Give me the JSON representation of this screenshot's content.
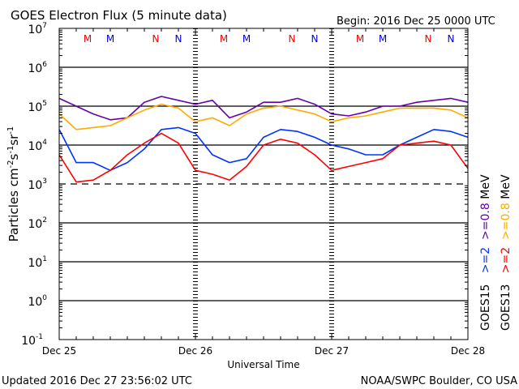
{
  "chart_data": {
    "type": "line",
    "title": "GOES Electron Flux (5 minute data)",
    "begin_label": "Begin: 2016 Dec 25 0000 UTC",
    "xlabel": "Universal Time",
    "ylabel": "Particles cm-2s-1sr-1",
    "y_scale": "log",
    "ylim_log10": [
      -1,
      7
    ],
    "y_tick_labels": [
      {
        "base": "10",
        "exp": "7",
        "v": 7
      },
      {
        "base": "10",
        "exp": "6",
        "v": 6
      },
      {
        "base": "10",
        "exp": "5",
        "v": 5
      },
      {
        "base": "10",
        "exp": "4",
        "v": 4
      },
      {
        "base": "10",
        "exp": "3",
        "v": 3
      },
      {
        "base": "10",
        "exp": "2",
        "v": 2
      },
      {
        "base": "10",
        "exp": "1",
        "v": 1
      },
      {
        "base": "10",
        "exp": "0",
        "v": 0
      },
      {
        "base": "10",
        "exp": "-1",
        "v": -1
      }
    ],
    "x_hours_range": [
      0,
      72
    ],
    "x_tick_labels": [
      {
        "label": "Dec 25",
        "h": 0
      },
      {
        "label": "Dec 26",
        "h": 24
      },
      {
        "label": "Dec 27",
        "h": 48
      },
      {
        "label": "Dec 28",
        "h": 72
      }
    ],
    "gridlines_log10": [
      6,
      5,
      4,
      2,
      1,
      0
    ],
    "dashed_threshold_log10": 3,
    "markers": [
      {
        "label": "M",
        "color": "#ff0000",
        "h": 5
      },
      {
        "label": "M",
        "color": "#0000ff",
        "h": 9
      },
      {
        "label": "N",
        "color": "#ff0000",
        "h": 17
      },
      {
        "label": "N",
        "color": "#0000ff",
        "h": 21
      },
      {
        "label": "M",
        "color": "#ff0000",
        "h": 29
      },
      {
        "label": "M",
        "color": "#0000ff",
        "h": 33
      },
      {
        "label": "N",
        "color": "#ff0000",
        "h": 41
      },
      {
        "label": "N",
        "color": "#0000ff",
        "h": 45
      },
      {
        "label": "M",
        "color": "#ff0000",
        "h": 53
      },
      {
        "label": "M",
        "color": "#0000ff",
        "h": 57
      },
      {
        "label": "N",
        "color": "#ff0000",
        "h": 65
      },
      {
        "label": "N",
        "color": "#0000ff",
        "h": 69
      }
    ],
    "x_hours": [
      0,
      3,
      6,
      9,
      12,
      15,
      18,
      21,
      24,
      27,
      30,
      33,
      36,
      39,
      42,
      45,
      48,
      51,
      54,
      57,
      60,
      63,
      66,
      69,
      72
    ],
    "series": [
      {
        "name": "GOES15 >=0.8 MeV",
        "color": "#6600aa",
        "log10_values": [
          5.2,
          5.0,
          4.8,
          4.65,
          4.7,
          5.1,
          5.25,
          5.15,
          5.05,
          5.15,
          4.7,
          4.85,
          5.1,
          5.1,
          5.2,
          5.05,
          4.8,
          4.75,
          4.85,
          5.0,
          5.0,
          5.1,
          5.15,
          5.2,
          5.1
        ]
      },
      {
        "name": "GOES13 >=0.8 MeV",
        "color": "#ffaa00",
        "log10_values": [
          4.8,
          4.4,
          4.45,
          4.5,
          4.7,
          4.9,
          5.05,
          4.95,
          4.6,
          4.7,
          4.5,
          4.8,
          4.95,
          5.0,
          4.9,
          4.8,
          4.6,
          4.7,
          4.75,
          4.85,
          4.95,
          4.95,
          4.95,
          4.9,
          4.7
        ]
      },
      {
        "name": "GOES15 >=2 MeV",
        "color": "#0033ff",
        "log10_values": [
          4.4,
          3.55,
          3.55,
          3.35,
          3.55,
          3.9,
          4.4,
          4.45,
          4.3,
          3.75,
          3.55,
          3.65,
          4.2,
          4.4,
          4.35,
          4.2,
          4.0,
          3.9,
          3.75,
          3.75,
          4.0,
          4.2,
          4.4,
          4.35,
          4.2
        ]
      },
      {
        "name": "GOES13 >=2 MeV",
        "color": "#ff0000",
        "log10_values": [
          3.75,
          3.05,
          3.1,
          3.35,
          3.75,
          4.05,
          4.3,
          4.05,
          3.35,
          3.25,
          3.1,
          3.45,
          4.0,
          4.15,
          4.05,
          3.75,
          3.35,
          3.45,
          3.55,
          3.65,
          4.0,
          4.05,
          4.1,
          4.0,
          3.4
        ]
      }
    ],
    "legend": {
      "placement": "right",
      "goes15": {
        "sat": "GOES15",
        "ge2": ">=2",
        "ge08": ">=0.8",
        "mev": "MeV"
      },
      "goes13": {
        "sat": "GOES13",
        "ge2": ">=2",
        "ge08": ">=0.8",
        "mev": "MeV"
      }
    }
  },
  "footer": {
    "updated": "Updated 2016 Dec 27 23:56:02 UTC",
    "credit": "NOAA/SWPC Boulder, CO USA"
  }
}
